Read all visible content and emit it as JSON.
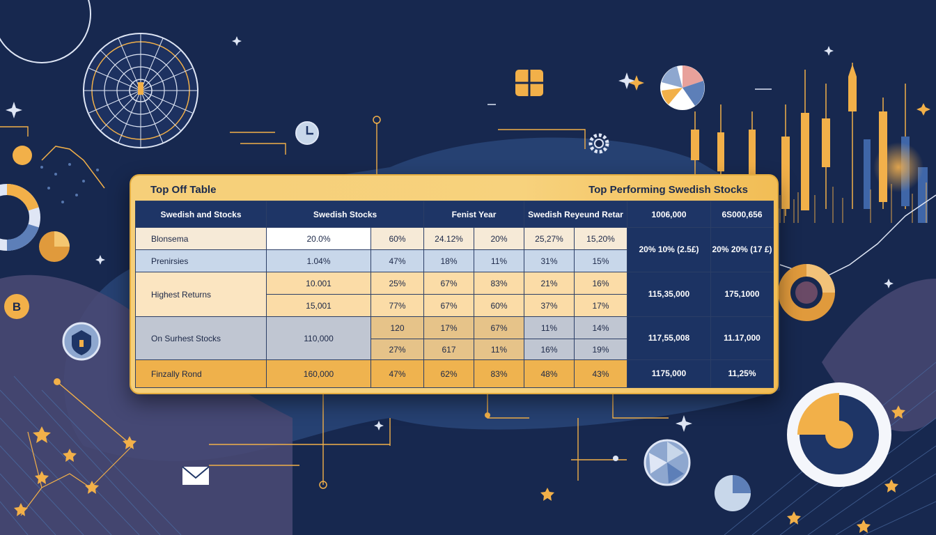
{
  "card": {
    "title_left": "Top Off Table",
    "title_right": "Top Performing Swedish Stocks"
  },
  "table": {
    "headers": [
      "Swedish and Stocks",
      "Swedish Stocks",
      "Fenist Year",
      "Swedish Reyeund Retar",
      "1006,000",
      "6S000,656"
    ],
    "rows": [
      {
        "label": "Blonsema",
        "c1": "20.0%",
        "c2": "60%",
        "c3": "24.12%",
        "c4": "20%",
        "c5": "25,27%",
        "c6": "15,20%",
        "r1": "20% 10% (2.5£)",
        "r2": "20% 20% (17 £)"
      },
      {
        "label": "Prenirsies",
        "c1": "1.04%",
        "c2": "47%",
        "c3": "18%",
        "c4": "11%",
        "c5": "31%",
        "c6": "15%"
      },
      {
        "label": "Highest Returns",
        "c1": "10.001",
        "c2": "25%",
        "c3": "67%",
        "c4": "83%",
        "c5": "21%",
        "c6": "16%",
        "r1": "115,35,000",
        "r2": "175,1000"
      },
      {
        "c1": "15,001",
        "c2": "77%",
        "c3": "67%",
        "c4": "60%",
        "c5": "37%",
        "c6": "17%"
      },
      {
        "label": "On Surhest Stocks",
        "c1": "110,000",
        "c2": "120",
        "c3": "17%",
        "c4": "67%",
        "c5": "11%",
        "c6": "14%",
        "r1": "117,55,008",
        "r2": "11.17,000"
      },
      {
        "c2": "27%",
        "c3": "617",
        "c4": "11%",
        "c5": "16%",
        "c6": "19%"
      },
      {
        "label": "Finzally Rond",
        "c1": "160,000",
        "c2": "47%",
        "c3": "62%",
        "c4": "83%",
        "c5": "48%",
        "c6": "43%",
        "r1": "1175,000",
        "r2": "11,25%"
      }
    ]
  },
  "icons": [
    "astrolabe-icon",
    "calendar-icon",
    "clock-icon",
    "gear-icon",
    "pie-chart-icon",
    "donut-chart-icon",
    "shield-icon",
    "bitcoin-icon",
    "mail-icon",
    "crystal-ball-icon",
    "candlestick-chart-icon",
    "star-icon",
    "sparkle-icon"
  ],
  "colors": {
    "background": "#17284f",
    "accent": "#f2b049",
    "panel": "#1e3566",
    "light_blue": "#c8d7ea"
  }
}
